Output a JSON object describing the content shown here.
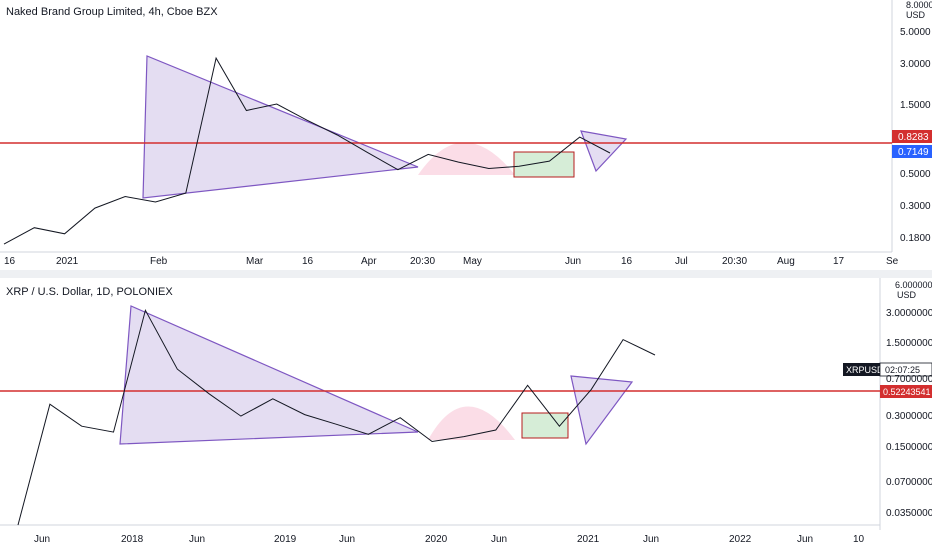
{
  "top": {
    "title": "Naked Brand Group Limited, 4h, Cboe BZX",
    "axis_unit_1": "8.0000",
    "axis_unit_2": "USD",
    "y_ticks": [
      "5.0000",
      "3.0000",
      "1.5000",
      "0.5000",
      "0.3000",
      "0.1800"
    ],
    "x_ticks": [
      "16",
      "2021",
      "Feb",
      "Mar",
      "16",
      "Apr",
      "20:30",
      "May",
      "Jun",
      "16",
      "Jul",
      "20:30",
      "Aug",
      "17",
      "Se"
    ],
    "level_label": "0.8283",
    "price_label": "0.7149",
    "colors": {
      "level": "#d32f2f",
      "price": "#2962ff",
      "triangle": "#7e57c2"
    }
  },
  "bottom": {
    "title": "XRP / U.S. Dollar, 1D, POLONIEX",
    "axis_unit_1": "6.00000000",
    "axis_unit_2": "USD",
    "y_ticks": [
      "3.00000000",
      "1.50000000",
      "0.70000000",
      "0.30000000",
      "0.15000000",
      "0.07000000",
      "0.03500000"
    ],
    "x_ticks": [
      "Jun",
      "2018",
      "Jun",
      "2019",
      "Jun",
      "2020",
      "Jun",
      "2021",
      "Jun",
      "2022",
      "Jun",
      "10"
    ],
    "symbol_label": "XRPUSD",
    "countdown": "02:07:25",
    "level_label": "0.52243541",
    "colors": {
      "level": "#d32f2f",
      "price": "#131722",
      "triangle": "#7e57c2"
    }
  },
  "chart_data": [
    {
      "type": "line",
      "title": "Naked Brand Group Limited, 4h, Cboe BZX",
      "y_scale": "log",
      "ylim": [
        0.15,
        8.0
      ],
      "x": [
        0,
        1,
        2,
        3,
        4,
        5,
        6,
        7,
        8,
        9,
        10,
        11,
        12,
        13,
        14,
        15,
        16,
        17,
        18,
        19,
        20
      ],
      "values": [
        0.17,
        0.22,
        0.2,
        0.3,
        0.36,
        0.33,
        0.38,
        3.2,
        1.4,
        1.55,
        1.2,
        0.95,
        0.72,
        0.55,
        0.7,
        0.62,
        0.56,
        0.58,
        0.63,
        0.92,
        0.7149
      ],
      "horizontal_level": 0.8283,
      "last_price": 0.7149
    },
    {
      "type": "line",
      "title": "XRP / U.S. Dollar, 1D, POLONIEX",
      "y_scale": "log",
      "ylim": [
        0.03,
        6.0
      ],
      "x": [
        0,
        1,
        2,
        3,
        4,
        5,
        6,
        7,
        8,
        9,
        10,
        11,
        12,
        13,
        14,
        15,
        16,
        17,
        18,
        19,
        20
      ],
      "values": [
        0.006,
        0.4,
        0.25,
        0.22,
        3.0,
        0.85,
        0.5,
        0.31,
        0.45,
        0.32,
        0.26,
        0.21,
        0.3,
        0.18,
        0.2,
        0.23,
        0.6,
        0.25,
        0.55,
        1.6,
        1.15
      ],
      "horizontal_level": 0.52243541
    }
  ]
}
